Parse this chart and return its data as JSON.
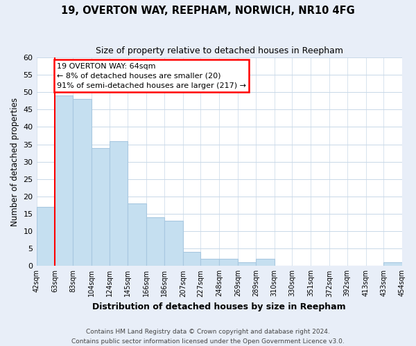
{
  "title": "19, OVERTON WAY, REEPHAM, NORWICH, NR10 4FG",
  "subtitle": "Size of property relative to detached houses in Reepham",
  "xlabel": "Distribution of detached houses by size in Reepham",
  "ylabel": "Number of detached properties",
  "bar_edges": [
    42,
    63,
    83,
    104,
    124,
    145,
    166,
    186,
    207,
    227,
    248,
    269,
    289,
    310,
    330,
    351,
    372,
    392,
    413,
    433,
    454
  ],
  "bar_heights": [
    17,
    49,
    48,
    34,
    36,
    18,
    14,
    13,
    4,
    2,
    2,
    1,
    2,
    0,
    0,
    0,
    0,
    0,
    0,
    1
  ],
  "bar_color": "#c5dff0",
  "bar_edgecolor": "#a8c8e0",
  "vline_x": 63,
  "vline_color": "red",
  "ylim": [
    0,
    60
  ],
  "yticks": [
    0,
    5,
    10,
    15,
    20,
    25,
    30,
    35,
    40,
    45,
    50,
    55,
    60
  ],
  "xtick_labels": [
    "42sqm",
    "63sqm",
    "83sqm",
    "104sqm",
    "124sqm",
    "145sqm",
    "166sqm",
    "186sqm",
    "207sqm",
    "227sqm",
    "248sqm",
    "269sqm",
    "289sqm",
    "310sqm",
    "330sqm",
    "351sqm",
    "372sqm",
    "392sqm",
    "413sqm",
    "433sqm",
    "454sqm"
  ],
  "annotation_title": "19 OVERTON WAY: 64sqm",
  "annotation_line1": "← 8% of detached houses are smaller (20)",
  "annotation_line2": "91% of semi-detached houses are larger (217) →",
  "annotation_box_color": "white",
  "annotation_box_edgecolor": "red",
  "footer1": "Contains HM Land Registry data © Crown copyright and database right 2024.",
  "footer2": "Contains public sector information licensed under the Open Government Licence v3.0.",
  "background_color": "#e8eef8",
  "plot_background": "white",
  "grid_color": "#c8d8e8"
}
